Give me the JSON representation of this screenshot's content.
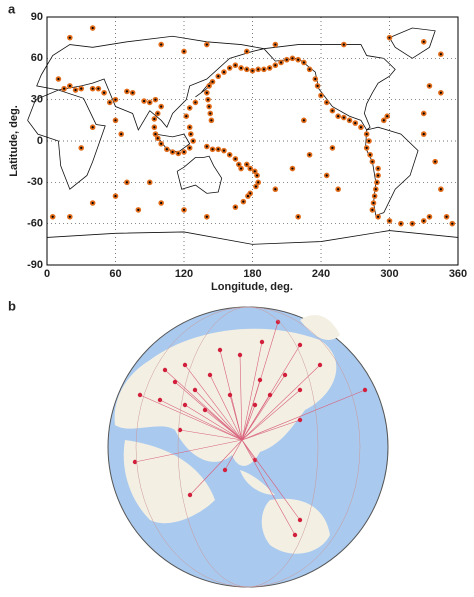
{
  "panel_labels": [
    "a",
    "b"
  ],
  "chart_data": {
    "type": "scatter",
    "xlabel": "Longitude, deg.",
    "ylabel": "Latitude, deg.",
    "xlim": [
      0,
      360
    ],
    "ylim": [
      -90,
      90
    ],
    "xticks": [
      0,
      60,
      120,
      180,
      240,
      300,
      360
    ],
    "yticks": [
      90,
      60,
      30,
      0,
      -30,
      -60,
      -90
    ],
    "grid": true,
    "color": "#e36c1a",
    "x": [
      142,
      145,
      150,
      155,
      160,
      165,
      170,
      175,
      180,
      185,
      190,
      195,
      200,
      205,
      210,
      215,
      220,
      225,
      230,
      235,
      237,
      140,
      141,
      142,
      143,
      144,
      130,
      125,
      122,
      125,
      126,
      128,
      125,
      120,
      115,
      110,
      105,
      100,
      97,
      95,
      94,
      94,
      97,
      100,
      95,
      90,
      85,
      75,
      70,
      60,
      55,
      50,
      45,
      40,
      30,
      25,
      20,
      15,
      10,
      140,
      145,
      150,
      155,
      160,
      165,
      168,
      170,
      175,
      178,
      182,
      184,
      185,
      183,
      178,
      176,
      172,
      165,
      240,
      245,
      250,
      255,
      260,
      265,
      270,
      275,
      280,
      282,
      280,
      283,
      285,
      290,
      290,
      289,
      288,
      287,
      286,
      285,
      290,
      300,
      310,
      320,
      330,
      335,
      295,
      298,
      330,
      335,
      345,
      330,
      340,
      345,
      350,
      355,
      5,
      20,
      40,
      60,
      70,
      80,
      90,
      100,
      65,
      60,
      40,
      30,
      120,
      140,
      220,
      200,
      215,
      230,
      255,
      245,
      250,
      225,
      20,
      40,
      100,
      120,
      140,
      175,
      200,
      260,
      300,
      330,
      345
    ],
    "values": [
      40,
      43,
      47,
      50,
      53,
      55,
      53,
      52,
      51,
      52,
      52,
      53,
      55,
      57,
      59,
      60,
      59,
      57,
      52,
      45,
      40,
      35,
      30,
      25,
      20,
      15,
      28,
      24,
      18,
      10,
      5,
      0,
      -5,
      -8,
      -9,
      -8,
      -6,
      -2,
      2,
      5,
      10,
      16,
      20,
      25,
      30,
      28,
      29,
      35,
      36,
      30,
      28,
      35,
      38,
      38,
      38,
      37,
      40,
      38,
      45,
      -4,
      -6,
      -6,
      -7,
      -10,
      -13,
      -17,
      -20,
      -17,
      -20,
      -22,
      -25,
      -30,
      -33,
      -38,
      -40,
      -44,
      -48,
      33,
      28,
      22,
      18,
      17,
      15,
      13,
      10,
      5,
      0,
      -5,
      -10,
      -15,
      -20,
      -25,
      -30,
      -35,
      -40,
      -45,
      -50,
      -55,
      -58,
      -60,
      -60,
      -58,
      -55,
      15,
      18,
      20,
      40,
      35,
      5,
      -15,
      -35,
      -55,
      -60,
      -55,
      -55,
      -45,
      -40,
      -30,
      -50,
      -30,
      -45,
      5,
      15,
      10,
      -5,
      -50,
      -55,
      -55,
      -35,
      -20,
      -10,
      -35,
      -25,
      -5,
      15,
      75,
      82,
      70,
      65,
      70,
      65,
      70,
      70,
      75,
      72,
      63
    ]
  }
}
